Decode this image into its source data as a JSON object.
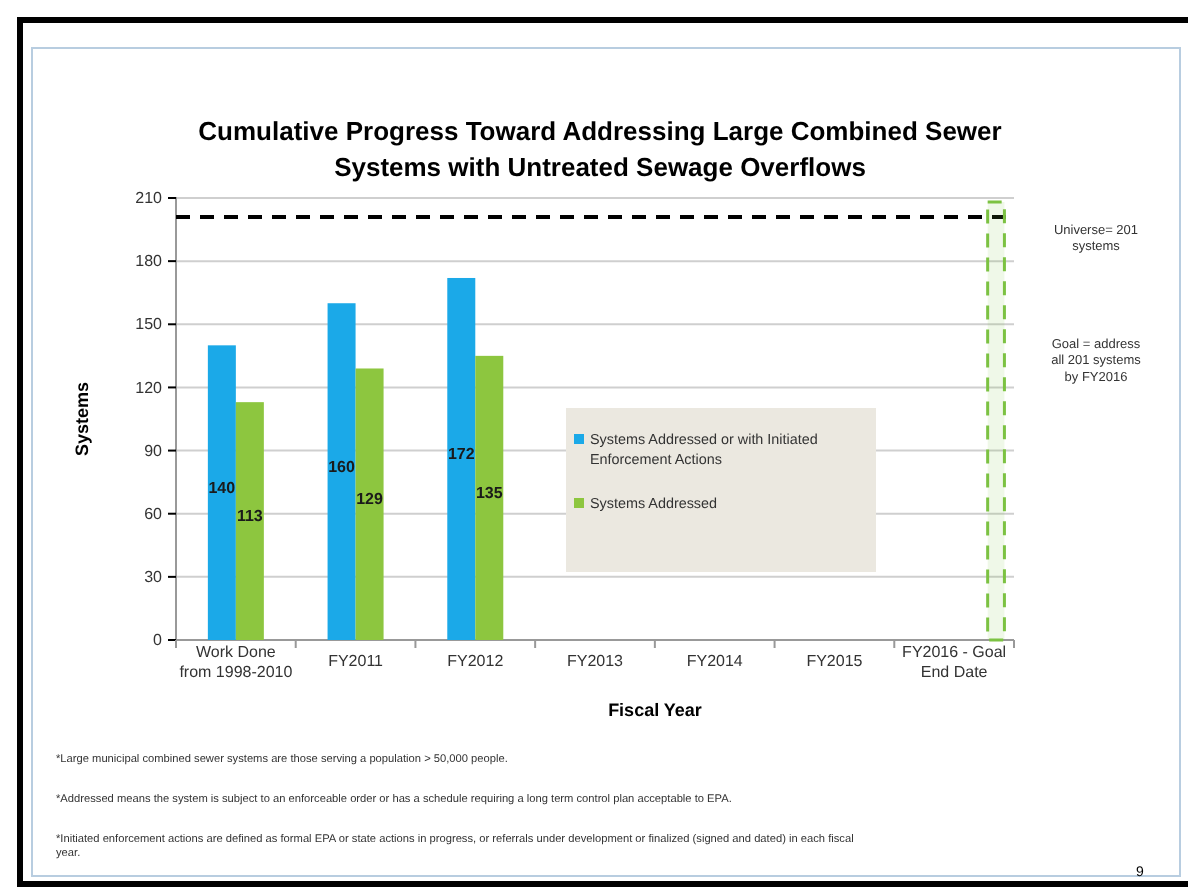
{
  "chart_data": {
    "type": "bar",
    "title": "Cumulative Progress Toward Addressing Large Combined Sewer Systems with Untreated Sewage Overflows",
    "xlabel": "Fiscal Year",
    "ylabel": "Systems",
    "categories": [
      "Work Done from 1998-2010",
      "FY2011",
      "FY2012",
      "FY2013",
      "FY2014",
      "FY2015",
      "FY2016 - Goal End Date"
    ],
    "series": [
      {
        "name": "Systems Addressed or with Initiated Enforcement Actions",
        "color": "#1ba9e8",
        "values": [
          140,
          160,
          172,
          null,
          null,
          null,
          null
        ]
      },
      {
        "name": "Systems Addressed",
        "color": "#8dc63f",
        "values": [
          113,
          129,
          135,
          null,
          null,
          null,
          null
        ]
      }
    ],
    "ylim": [
      0,
      210
    ],
    "yticks": [
      0,
      30,
      60,
      90,
      120,
      150,
      180,
      210
    ],
    "grid": "y",
    "legend": "center",
    "data_labels": true,
    "ref_lines": [
      {
        "axis": "y",
        "value": 201,
        "color": "#000000",
        "line_style": "dashed"
      }
    ],
    "bands": [
      {
        "axis": "x",
        "from": "FY2016 - Goal End Date",
        "to": "FY2016 - Goal End Date",
        "color": "#7cc242"
      }
    ],
    "annotations": [
      "Universe= 201 systems",
      "Goal = address all 201 systems by FY2016",
      "*Large municipal combined sewer systems are those serving a population > 50,000 people.",
      "*Addressed means the system is subject to an enforceable order or has a schedule requiring a long term control plan acceptable to EPA.",
      "*Initiated enforcement actions are defined as  formal EPA or state actions in progress, or referrals under development or finalized (signed and dated) in each fiscal year.",
      "9"
    ]
  }
}
